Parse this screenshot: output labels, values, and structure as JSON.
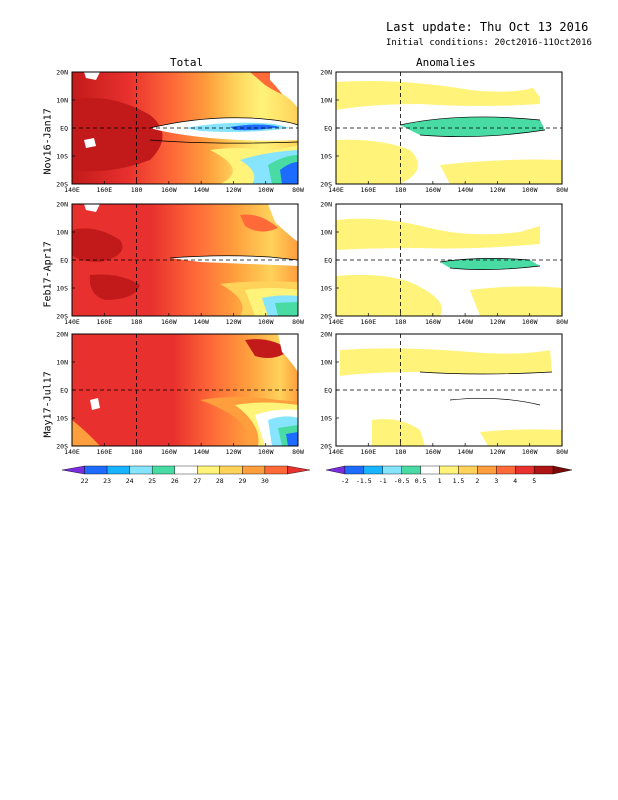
{
  "header": {
    "last_update": "Last update: Thu Oct 13 2016",
    "initial_conditions": "Initial conditions: 20ct2016-11Oct2016"
  },
  "columns": {
    "total": "Total",
    "anomalies": "Anomalies"
  },
  "rows": [
    {
      "label": "Nov16-Jan17"
    },
    {
      "label": "Feb17-Apr17"
    },
    {
      "label": "May17-Jul17"
    }
  ],
  "axes": {
    "lat_ticks": [
      "20N",
      "10N",
      "EQ",
      "10S",
      "20S"
    ],
    "lon_ticks": [
      "140E",
      "160E",
      "180",
      "160W",
      "140W",
      "120W",
      "100W",
      "80W"
    ]
  },
  "colorbars": {
    "total": {
      "labels": [
        "22",
        "23",
        "24",
        "25",
        "26",
        "27",
        "28",
        "29",
        "30"
      ],
      "colors": [
        "#7a2be0",
        "#1e6cff",
        "#19b4ff",
        "#86e4ff",
        "#48dba3",
        "#ffffff",
        "#fff37a",
        "#ffd25a",
        "#ff9e3d",
        "#ff6a38",
        "#e8312e"
      ]
    },
    "anomalies": {
      "labels": [
        "-2",
        "-1.5",
        "-1",
        "-0.5",
        "0.5",
        "1",
        "1.5",
        "2",
        "3",
        "4",
        "5"
      ],
      "colors": [
        "#7a2be0",
        "#1e6cff",
        "#19b4ff",
        "#86e4ff",
        "#48dba3",
        "#ffffff",
        "#fff37a",
        "#ffd25a",
        "#ff9e3d",
        "#ff6a38",
        "#e8312e",
        "#b01515",
        "#7a0a0a"
      ]
    }
  },
  "colors": {
    "sst_warmest": "#c21a1a",
    "sst_warm": "#e8312e",
    "sst_mid": "#ff9e3d",
    "sst_cool": "#86e4ff",
    "anom_positive": "#fff37a",
    "anom_negative": "#48dba3"
  }
}
